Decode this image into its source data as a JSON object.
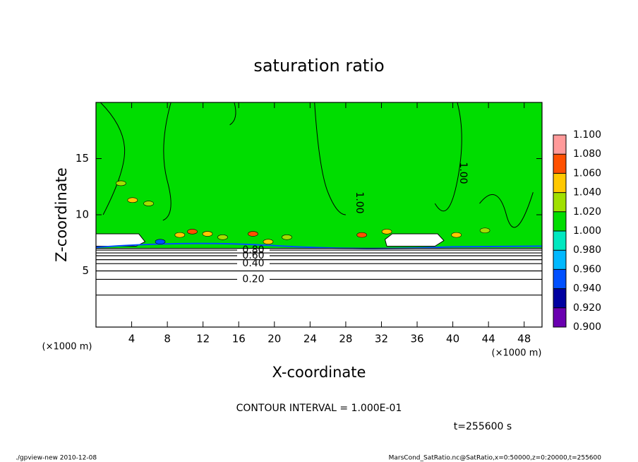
{
  "chart_data": {
    "type": "contour",
    "title": "saturation ratio",
    "xlabel": "X-coordinate",
    "ylabel": "Z-coordinate",
    "xunit": "(×1000 m)",
    "yunit": "(×1000 m)",
    "xlim": [
      0,
      50
    ],
    "ylim": [
      0,
      20
    ],
    "xticks": [
      4,
      8,
      12,
      16,
      20,
      24,
      28,
      32,
      36,
      40,
      44,
      48
    ],
    "yticks": [
      5,
      10,
      15
    ],
    "field_value": 1.0,
    "contours": {
      "levels": [
        0.1,
        0.2,
        0.3,
        0.4,
        0.5,
        0.6,
        0.7,
        0.8,
        0.9
      ],
      "heights": [
        2.85,
        4.25,
        5.0,
        5.65,
        6.0,
        6.35,
        6.6,
        6.85,
        7.0
      ],
      "value_labels": [
        null,
        "0.20",
        null,
        "0.40",
        null,
        "0.60",
        null,
        "0.80",
        null
      ],
      "inline_labels": [
        "1.00",
        "1.00"
      ]
    },
    "patches": [
      {
        "x": 2.8,
        "z": 12.8,
        "value": 1.03
      },
      {
        "x": 4.1,
        "z": 11.3,
        "value": 1.05
      },
      {
        "x": 5.9,
        "z": 11.0,
        "value": 1.03
      },
      {
        "x": 7.2,
        "z": 7.6,
        "value": 0.95
      },
      {
        "x": 9.4,
        "z": 8.2,
        "value": 1.05
      },
      {
        "x": 10.8,
        "z": 8.5,
        "value": 1.07
      },
      {
        "x": 12.5,
        "z": 8.3,
        "value": 1.05
      },
      {
        "x": 14.2,
        "z": 8.0,
        "value": 1.03
      },
      {
        "x": 17.6,
        "z": 8.3,
        "value": 1.07
      },
      {
        "x": 19.3,
        "z": 7.6,
        "value": 1.05
      },
      {
        "x": 21.4,
        "z": 8.0,
        "value": 1.03
      },
      {
        "x": 29.8,
        "z": 8.2,
        "value": 1.07
      },
      {
        "x": 32.6,
        "z": 8.5,
        "value": 1.05
      },
      {
        "x": 40.4,
        "z": 8.2,
        "value": 1.05
      },
      {
        "x": 43.6,
        "z": 8.6,
        "value": 1.03
      }
    ],
    "colorbar": {
      "ticks": [
        {
          "value": 0.9,
          "label": "0.900"
        },
        {
          "value": 0.92,
          "label": "0.920"
        },
        {
          "value": 0.94,
          "label": "0.940"
        },
        {
          "value": 0.96,
          "label": "0.960"
        },
        {
          "value": 0.98,
          "label": "0.980"
        },
        {
          "value": 1.0,
          "label": "1.000"
        },
        {
          "value": 1.02,
          "label": "1.020"
        },
        {
          "value": 1.04,
          "label": "1.040"
        },
        {
          "value": 1.06,
          "label": "1.060"
        },
        {
          "value": 1.08,
          "label": "1.080"
        },
        {
          "value": 1.1,
          "label": "1.100"
        }
      ],
      "colors": [
        "#6a00b0",
        "#0000a0",
        "#0050ff",
        "#00b8ff",
        "#00e8c0",
        "#00dd00",
        "#a0e000",
        "#ffc800",
        "#ff5000",
        "#ff9a9a"
      ]
    },
    "contour_interval": "CONTOUR INTERVAL = 1.000E-01",
    "time": "t=255600 s",
    "footer_left": "./gpview-new  2010-12-08",
    "footer_right": "MarsCond_SatRatio.nc@SatRatio,x=0:50000,z=0:20000,t=255600"
  }
}
